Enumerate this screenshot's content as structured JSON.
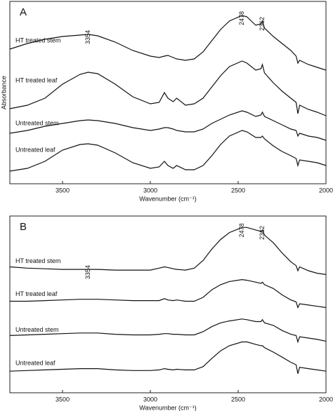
{
  "chart_data": [
    {
      "type": "line",
      "title": "A",
      "xlabel": "Wavenumber (cm⁻¹)",
      "ylabel": "Absorbance",
      "x": [
        3800,
        3700,
        3600,
        3500,
        3400,
        3354,
        3300,
        3200,
        3100,
        3000,
        2950,
        2920,
        2900,
        2870,
        2850,
        2800,
        2750,
        2700,
        2650,
        2600,
        2550,
        2478,
        2450,
        2400,
        2370,
        2362,
        2350,
        2300,
        2250,
        2200,
        2170,
        2160,
        2150,
        2100,
        2050,
        2000
      ],
      "xlim": [
        3800,
        2000
      ],
      "ylim": [
        0,
        260
      ],
      "xticks": [
        3500,
        3000,
        2500,
        2000
      ],
      "peak_labels": [
        3354,
        2478,
        2362
      ],
      "series": [
        {
          "name": "HT treated stem",
          "color": "#111111",
          "values": [
            192,
            200,
            206,
            210,
            212,
            213,
            211,
            202,
            190,
            182,
            180,
            182,
            183,
            180,
            178,
            176,
            178,
            188,
            204,
            220,
            232,
            240,
            238,
            226,
            228,
            232,
            222,
            210,
            200,
            190,
            182,
            172,
            176,
            170,
            166,
            162
          ]
        },
        {
          "name": "HT treated leaf",
          "color": "#111111",
          "values": [
            107,
            112,
            122,
            142,
            156,
            159,
            157,
            142,
            124,
            114,
            116,
            130,
            122,
            117,
            122,
            112,
            114,
            122,
            138,
            154,
            167,
            175,
            172,
            162,
            164,
            170,
            158,
            144,
            132,
            122,
            116,
            100,
            112,
            106,
            102,
            97
          ]
        },
        {
          "name": "Untreated stem",
          "color": "#111111",
          "values": [
            72,
            76,
            82,
            86,
            90,
            91,
            90,
            86,
            80,
            76,
            78,
            80,
            80,
            78,
            76,
            74,
            74,
            78,
            86,
            92,
            98,
            104,
            102,
            96,
            98,
            102,
            96,
            90,
            84,
            78,
            76,
            68,
            72,
            68,
            66,
            62
          ]
        },
        {
          "name": "Untreated leaf",
          "color": "#111111",
          "values": [
            18,
            22,
            32,
            48,
            56,
            57,
            55,
            44,
            30,
            22,
            24,
            32,
            26,
            22,
            26,
            20,
            20,
            26,
            40,
            56,
            68,
            76,
            74,
            66,
            66,
            68,
            64,
            54,
            46,
            40,
            36,
            26,
            34,
            32,
            30,
            26
          ]
        }
      ]
    },
    {
      "type": "line",
      "title": "B",
      "xlabel": "Wavenumber (cm⁻¹)",
      "x": [
        3800,
        3700,
        3600,
        3500,
        3400,
        3354,
        3300,
        3200,
        3100,
        3000,
        2950,
        2920,
        2900,
        2870,
        2850,
        2800,
        2750,
        2700,
        2650,
        2600,
        2550,
        2478,
        2450,
        2400,
        2370,
        2362,
        2350,
        2300,
        2250,
        2200,
        2170,
        2160,
        2150,
        2100,
        2050,
        2000
      ],
      "xlim": [
        3800,
        2000
      ],
      "ylim": [
        0,
        278
      ],
      "xticks": [
        3500,
        3000,
        2500,
        2000
      ],
      "peak_labels": [
        3354,
        2478,
        2362
      ],
      "series": [
        {
          "name": "HT treated stem",
          "color": "#111111",
          "values": [
            198,
            196,
            195,
            194,
            194,
            194,
            194,
            193,
            193,
            193,
            196,
            198,
            197,
            195,
            194,
            193,
            196,
            208,
            226,
            241,
            252,
            260,
            260,
            256,
            254,
            256,
            248,
            236,
            220,
            206,
            200,
            192,
            198,
            192,
            188,
            186
          ]
        },
        {
          "name": "HT treated leaf",
          "color": "#111111",
          "values": [
            144,
            144,
            145,
            146,
            147,
            147,
            147,
            146,
            145,
            145,
            145,
            148,
            146,
            145,
            146,
            144,
            144,
            150,
            162,
            170,
            175,
            178,
            177,
            174,
            172,
            174,
            170,
            164,
            154,
            146,
            143,
            134,
            140,
            138,
            136,
            134
          ]
        },
        {
          "name": "Untreated stem",
          "color": "#111111",
          "values": [
            90,
            91,
            92,
            93,
            94,
            94,
            94,
            92,
            91,
            91,
            92,
            93,
            93,
            92,
            92,
            91,
            91,
            96,
            104,
            110,
            113,
            116,
            115,
            112,
            112,
            115,
            110,
            106,
            98,
            92,
            90,
            80,
            88,
            86,
            84,
            81
          ]
        },
        {
          "name": "Untreated leaf",
          "color": "#111111",
          "values": [
            34,
            35,
            36,
            37,
            38,
            38,
            38,
            36,
            35,
            35,
            36,
            38,
            37,
            36,
            37,
            36,
            36,
            41,
            54,
            66,
            74,
            80,
            80,
            76,
            74,
            74,
            71,
            64,
            56,
            48,
            44,
            30,
            40,
            38,
            36,
            34
          ]
        }
      ]
    }
  ]
}
